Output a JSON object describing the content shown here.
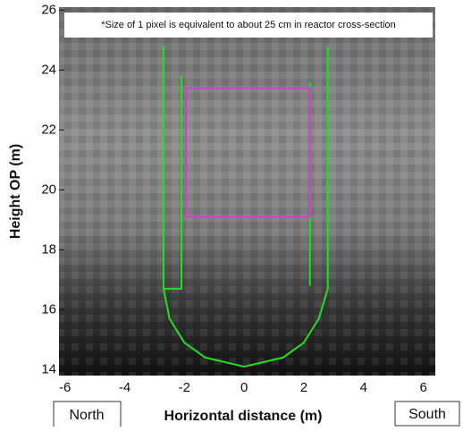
{
  "chart_data": {
    "type": "image-overlay",
    "annotation": "*Size of 1 pixel is equivalent to about 25 cm in reactor cross-section",
    "xlabel": "Horizontal distance (m)",
    "ylabel": "Height OP (m)",
    "left_label": "North",
    "right_label": "South",
    "xlim": [
      -6.2,
      6.4
    ],
    "ylim": [
      13.8,
      26.1
    ],
    "xticks": [
      -6,
      -4,
      -2,
      0,
      2,
      4,
      6
    ],
    "yticks": [
      14,
      16,
      18,
      20,
      22,
      24,
      26
    ],
    "outlines": [
      {
        "color": "#22e022",
        "x": [
          -2.7,
          -2.7,
          -2.5,
          -2.0,
          -1.3,
          0,
          1.3,
          2.0,
          2.5,
          2.8,
          2.8
        ],
        "y": [
          24.8,
          16.7,
          15.7,
          14.9,
          14.4,
          14.1,
          14.4,
          14.9,
          15.7,
          16.7,
          24.8
        ]
      },
      {
        "color": "#22e022",
        "x": [
          -2.1,
          -2.1,
          -2.7
        ],
        "y": [
          23.8,
          16.7,
          16.7
        ]
      },
      {
        "color": "#22e022",
        "x": [
          2.2,
          2.2
        ],
        "y": [
          23.6,
          16.8
        ]
      },
      {
        "color": "#d040d0",
        "x": [
          -1.95,
          2.2,
          2.2,
          -1.95,
          -1.95
        ],
        "y": [
          23.4,
          23.4,
          19.1,
          19.1,
          23.4
        ]
      }
    ]
  }
}
